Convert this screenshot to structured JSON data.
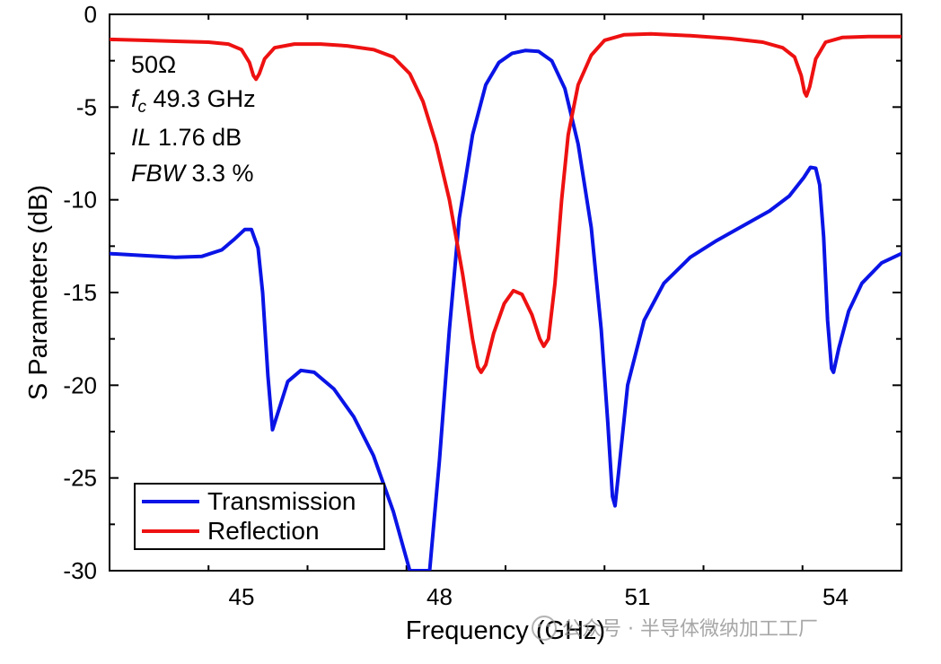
{
  "chart_data": {
    "type": "line",
    "xlabel": "Frequency (GHz)",
    "ylabel": "S Parameters (dB)",
    "xlim": [
      43,
      55
    ],
    "ylim": [
      -30,
      0
    ],
    "xticks": [
      45,
      48,
      51,
      54
    ],
    "xtick_labels": [
      "45",
      "48",
      "51",
      "54"
    ],
    "yticks": [
      0,
      -5,
      -10,
      -15,
      -20,
      -25,
      -30
    ],
    "ytick_labels": [
      "0",
      "-5",
      "-10",
      "-15",
      "-20",
      "-25",
      "-30"
    ],
    "grid": false,
    "legend_position": "bottom-left",
    "annotations": {
      "impedance": "50Ω",
      "fc_symbol": "f",
      "fc_sub": "c",
      "fc_value": " 49.3 GHz",
      "il_symbol": "IL",
      "il_value": " 1.76 dB",
      "fbw_symbol": "FBW",
      "fbw_value": " 3.3 %"
    },
    "series": [
      {
        "name": "Transmission",
        "color": "#0a14e6",
        "points": [
          [
            43.0,
            -12.9
          ],
          [
            43.5,
            -13.0
          ],
          [
            44.0,
            -13.1
          ],
          [
            44.4,
            -13.05
          ],
          [
            44.7,
            -12.7
          ],
          [
            44.9,
            -12.1
          ],
          [
            45.05,
            -11.6
          ],
          [
            45.15,
            -11.6
          ],
          [
            45.25,
            -12.6
          ],
          [
            45.32,
            -15.0
          ],
          [
            45.4,
            -19.5
          ],
          [
            45.47,
            -22.4
          ],
          [
            45.55,
            -21.5
          ],
          [
            45.7,
            -19.8
          ],
          [
            45.9,
            -19.2
          ],
          [
            46.1,
            -19.3
          ],
          [
            46.4,
            -20.2
          ],
          [
            46.7,
            -21.7
          ],
          [
            47.0,
            -23.8
          ],
          [
            47.3,
            -26.8
          ],
          [
            47.55,
            -30.0
          ],
          [
            47.85,
            -30.0
          ],
          [
            48.0,
            -24.0
          ],
          [
            48.15,
            -17.0
          ],
          [
            48.3,
            -11.0
          ],
          [
            48.5,
            -6.5
          ],
          [
            48.7,
            -3.8
          ],
          [
            48.9,
            -2.6
          ],
          [
            49.1,
            -2.1
          ],
          [
            49.3,
            -1.95
          ],
          [
            49.5,
            -2.0
          ],
          [
            49.7,
            -2.5
          ],
          [
            49.9,
            -4.0
          ],
          [
            50.1,
            -7.0
          ],
          [
            50.3,
            -11.5
          ],
          [
            50.45,
            -17.0
          ],
          [
            50.55,
            -22.0
          ],
          [
            50.62,
            -26.0
          ],
          [
            50.66,
            -26.5
          ],
          [
            50.72,
            -24.5
          ],
          [
            50.85,
            -20.0
          ],
          [
            51.1,
            -16.5
          ],
          [
            51.4,
            -14.5
          ],
          [
            51.8,
            -13.1
          ],
          [
            52.2,
            -12.2
          ],
          [
            52.6,
            -11.4
          ],
          [
            53.0,
            -10.6
          ],
          [
            53.3,
            -9.8
          ],
          [
            53.52,
            -8.8
          ],
          [
            53.62,
            -8.25
          ],
          [
            53.7,
            -8.3
          ],
          [
            53.76,
            -9.2
          ],
          [
            53.82,
            -12.0
          ],
          [
            53.88,
            -16.5
          ],
          [
            53.94,
            -19.1
          ],
          [
            53.97,
            -19.3
          ],
          [
            54.05,
            -18.0
          ],
          [
            54.2,
            -16.0
          ],
          [
            54.4,
            -14.5
          ],
          [
            54.7,
            -13.4
          ],
          [
            55.0,
            -12.9
          ]
        ]
      },
      {
        "name": "Reflection",
        "color": "#ee1111",
        "points": [
          [
            43.0,
            -1.35
          ],
          [
            43.5,
            -1.4
          ],
          [
            44.0,
            -1.45
          ],
          [
            44.5,
            -1.5
          ],
          [
            44.8,
            -1.6
          ],
          [
            45.0,
            -1.9
          ],
          [
            45.12,
            -2.6
          ],
          [
            45.18,
            -3.3
          ],
          [
            45.22,
            -3.5
          ],
          [
            45.27,
            -3.2
          ],
          [
            45.35,
            -2.4
          ],
          [
            45.5,
            -1.8
          ],
          [
            45.8,
            -1.6
          ],
          [
            46.2,
            -1.6
          ],
          [
            46.6,
            -1.7
          ],
          [
            47.0,
            -1.9
          ],
          [
            47.3,
            -2.3
          ],
          [
            47.55,
            -3.2
          ],
          [
            47.75,
            -4.7
          ],
          [
            47.95,
            -7.0
          ],
          [
            48.15,
            -10.0
          ],
          [
            48.35,
            -14.0
          ],
          [
            48.5,
            -17.5
          ],
          [
            48.58,
            -19.0
          ],
          [
            48.63,
            -19.3
          ],
          [
            48.7,
            -18.9
          ],
          [
            48.82,
            -17.2
          ],
          [
            48.98,
            -15.6
          ],
          [
            49.12,
            -14.9
          ],
          [
            49.25,
            -15.1
          ],
          [
            49.4,
            -16.2
          ],
          [
            49.52,
            -17.5
          ],
          [
            49.58,
            -17.9
          ],
          [
            49.65,
            -17.5
          ],
          [
            49.75,
            -14.5
          ],
          [
            49.85,
            -10.0
          ],
          [
            49.95,
            -6.5
          ],
          [
            50.1,
            -3.8
          ],
          [
            50.3,
            -2.2
          ],
          [
            50.5,
            -1.4
          ],
          [
            50.8,
            -1.1
          ],
          [
            51.2,
            -1.05
          ],
          [
            51.8,
            -1.15
          ],
          [
            52.4,
            -1.3
          ],
          [
            52.9,
            -1.5
          ],
          [
            53.2,
            -1.8
          ],
          [
            53.38,
            -2.3
          ],
          [
            53.48,
            -3.3
          ],
          [
            53.53,
            -4.2
          ],
          [
            53.56,
            -4.4
          ],
          [
            53.61,
            -3.9
          ],
          [
            53.7,
            -2.4
          ],
          [
            53.85,
            -1.5
          ],
          [
            54.1,
            -1.25
          ],
          [
            54.5,
            -1.2
          ],
          [
            55.0,
            -1.2
          ]
        ]
      }
    ]
  },
  "watermark": {
    "text": "公众号 · 半导体微纳加工工厂"
  }
}
